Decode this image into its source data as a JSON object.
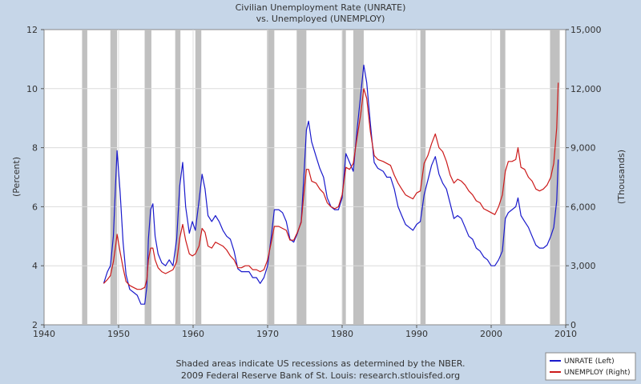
{
  "chart_data": {
    "type": "line",
    "title": "Civilian Unemployment Rate (UNRATE)",
    "subtitle": "vs.  Unemployed (UNEMPLOY)",
    "ylabel_left": "(Percent)",
    "ylabel_right": "(Thousands)",
    "xlim": [
      1940,
      2010
    ],
    "ylim_left": [
      2,
      12
    ],
    "ylim_right": [
      0,
      15000
    ],
    "x_ticks": [
      1940,
      1950,
      1960,
      1970,
      1980,
      1990,
      2000,
      2010
    ],
    "y_left_ticks": [
      2,
      4,
      6,
      8,
      10,
      12
    ],
    "y_right_ticks": [
      0,
      3000,
      6000,
      9000,
      12000,
      15000
    ],
    "y_right_tick_labels": [
      "0",
      "3,000",
      "6,000",
      "9,000",
      "12,000",
      "15,000"
    ],
    "grid": true,
    "legend_position": "bottom-right",
    "recessions": [
      [
        1945.1,
        1945.8
      ],
      [
        1948.9,
        1949.8
      ],
      [
        1953.5,
        1954.4
      ],
      [
        1957.6,
        1958.3
      ],
      [
        1960.3,
        1961.1
      ],
      [
        1969.9,
        1970.9
      ],
      [
        1973.9,
        1975.2
      ],
      [
        1980.0,
        1980.5
      ],
      [
        1981.5,
        1982.9
      ],
      [
        1990.5,
        1991.2
      ],
      [
        2001.2,
        2001.9
      ],
      [
        2007.9,
        2009.2
      ]
    ],
    "series": [
      {
        "name": "UNRATE (Left)",
        "axis": "left",
        "color": "#1a1acc",
        "x": [
          1948.0,
          1948.5,
          1948.9,
          1949.3,
          1949.6,
          1949.8,
          1950.2,
          1950.6,
          1951.0,
          1951.5,
          1952.0,
          1952.5,
          1953.0,
          1953.5,
          1953.8,
          1954.0,
          1954.3,
          1954.6,
          1954.9,
          1955.3,
          1955.8,
          1956.3,
          1956.8,
          1957.3,
          1957.8,
          1958.2,
          1958.6,
          1959.0,
          1959.5,
          1959.9,
          1960.3,
          1960.8,
          1961.2,
          1961.6,
          1962.0,
          1962.5,
          1963.0,
          1963.5,
          1964.0,
          1964.5,
          1965.0,
          1965.5,
          1966.0,
          1966.5,
          1967.0,
          1967.5,
          1968.0,
          1968.5,
          1969.0,
          1969.5,
          1970.0,
          1970.5,
          1970.9,
          1971.5,
          1972.0,
          1972.5,
          1973.0,
          1973.5,
          1974.0,
          1974.5,
          1974.9,
          1975.2,
          1975.5,
          1975.9,
          1976.5,
          1977.0,
          1977.5,
          1978.0,
          1978.5,
          1979.0,
          1979.5,
          1980.0,
          1980.5,
          1981.0,
          1981.5,
          1982.0,
          1982.5,
          1982.9,
          1983.3,
          1983.8,
          1984.3,
          1984.8,
          1985.5,
          1986.0,
          1986.5,
          1987.0,
          1987.5,
          1988.0,
          1988.5,
          1989.0,
          1989.5,
          1990.0,
          1990.5,
          1991.0,
          1991.5,
          1992.0,
          1992.5,
          1993.0,
          1993.5,
          1994.0,
          1994.5,
          1995.0,
          1995.5,
          1996.0,
          1996.5,
          1997.0,
          1997.5,
          1998.0,
          1998.5,
          1999.0,
          1999.5,
          2000.0,
          2000.5,
          2001.0,
          2001.5,
          2001.9,
          2002.3,
          2002.8,
          2003.3,
          2003.6,
          2004.0,
          2004.5,
          2005.0,
          2005.5,
          2006.0,
          2006.5,
          2007.0,
          2007.5,
          2008.0,
          2008.4,
          2008.8,
          2009.0
        ],
        "values": [
          3.4,
          3.8,
          4.0,
          5.0,
          6.8,
          7.9,
          6.5,
          4.8,
          3.7,
          3.2,
          3.1,
          3.0,
          2.7,
          2.7,
          3.3,
          4.9,
          5.9,
          6.1,
          5.0,
          4.4,
          4.1,
          4.0,
          4.2,
          4.0,
          4.9,
          6.7,
          7.5,
          6.0,
          5.1,
          5.5,
          5.2,
          6.2,
          7.1,
          6.6,
          5.7,
          5.5,
          5.7,
          5.5,
          5.2,
          5.0,
          4.9,
          4.5,
          3.9,
          3.8,
          3.8,
          3.8,
          3.6,
          3.6,
          3.4,
          3.6,
          4.0,
          5.0,
          5.9,
          5.9,
          5.8,
          5.5,
          4.9,
          4.8,
          5.1,
          5.5,
          7.2,
          8.6,
          8.9,
          8.2,
          7.7,
          7.3,
          7.0,
          6.3,
          6.0,
          5.9,
          5.9,
          6.3,
          7.8,
          7.5,
          7.2,
          8.6,
          9.8,
          10.8,
          10.2,
          8.8,
          7.5,
          7.3,
          7.2,
          7.0,
          7.0,
          6.6,
          6.0,
          5.7,
          5.4,
          5.3,
          5.2,
          5.4,
          5.5,
          6.4,
          6.9,
          7.4,
          7.7,
          7.1,
          6.8,
          6.6,
          6.1,
          5.6,
          5.7,
          5.6,
          5.3,
          5.0,
          4.9,
          4.6,
          4.5,
          4.3,
          4.2,
          4.0,
          4.0,
          4.2,
          4.5,
          5.6,
          5.8,
          5.9,
          6.0,
          6.3,
          5.7,
          5.5,
          5.3,
          5.0,
          4.7,
          4.6,
          4.6,
          4.7,
          5.0,
          5.3,
          6.2,
          7.6
        ]
      },
      {
        "name": "UNEMPLOY (Right)",
        "axis": "right",
        "color": "#cc1a1a",
        "x": [
          1948.0,
          1948.5,
          1948.9,
          1949.3,
          1949.6,
          1949.8,
          1950.2,
          1950.6,
          1951.0,
          1951.5,
          1952.0,
          1952.5,
          1953.0,
          1953.5,
          1953.8,
          1954.0,
          1954.3,
          1954.6,
          1954.9,
          1955.3,
          1955.8,
          1956.3,
          1956.8,
          1957.3,
          1957.8,
          1958.2,
          1958.6,
          1959.0,
          1959.5,
          1959.9,
          1960.3,
          1960.8,
          1961.2,
          1961.6,
          1962.0,
          1962.5,
          1963.0,
          1963.5,
          1964.0,
          1964.5,
          1965.0,
          1965.5,
          1966.0,
          1966.5,
          1967.0,
          1967.5,
          1968.0,
          1968.5,
          1969.0,
          1969.5,
          1970.0,
          1970.5,
          1970.9,
          1971.5,
          1972.0,
          1972.5,
          1973.0,
          1973.5,
          1974.0,
          1974.5,
          1974.9,
          1975.2,
          1975.5,
          1975.9,
          1976.5,
          1977.0,
          1977.5,
          1978.0,
          1978.5,
          1979.0,
          1979.5,
          1980.0,
          1980.5,
          1981.0,
          1981.5,
          1982.0,
          1982.5,
          1982.9,
          1983.3,
          1983.8,
          1984.3,
          1984.8,
          1985.5,
          1986.0,
          1986.5,
          1987.0,
          1987.5,
          1988.0,
          1988.5,
          1989.0,
          1989.5,
          1990.0,
          1990.5,
          1991.0,
          1991.5,
          1992.0,
          1992.5,
          1993.0,
          1993.5,
          1994.0,
          1994.5,
          1995.0,
          1995.5,
          1996.0,
          1996.5,
          1997.0,
          1997.5,
          1998.0,
          1998.5,
          1999.0,
          1999.5,
          2000.0,
          2000.5,
          2001.0,
          2001.5,
          2001.9,
          2002.3,
          2002.8,
          2003.3,
          2003.6,
          2004.0,
          2004.5,
          2005.0,
          2005.5,
          2006.0,
          2006.5,
          2007.0,
          2007.5,
          2008.0,
          2008.4,
          2008.8,
          2009.0
        ],
        "values": [
          2100,
          2300,
          2500,
          3200,
          4000,
          4600,
          3700,
          2900,
          2200,
          2000,
          1900,
          1800,
          1800,
          1900,
          2300,
          3300,
          3900,
          3900,
          3300,
          2900,
          2700,
          2600,
          2700,
          2800,
          3200,
          4400,
          5100,
          4300,
          3600,
          3500,
          3600,
          4000,
          4900,
          4700,
          4000,
          3900,
          4200,
          4100,
          4000,
          3800,
          3500,
          3300,
          2900,
          2900,
          3000,
          3000,
          2800,
          2800,
          2700,
          2800,
          3300,
          4200,
          5000,
          5000,
          4900,
          4800,
          4300,
          4300,
          4700,
          5200,
          6800,
          7900,
          7900,
          7300,
          7200,
          6900,
          6700,
          6200,
          6000,
          5900,
          6000,
          6600,
          8000,
          7900,
          8200,
          9500,
          10700,
          12000,
          11500,
          9800,
          8600,
          8400,
          8300,
          8200,
          8100,
          7600,
          7200,
          6900,
          6600,
          6500,
          6400,
          6700,
          6800,
          8200,
          8600,
          9200,
          9700,
          9000,
          8800,
          8300,
          7600,
          7200,
          7400,
          7300,
          7100,
          6800,
          6600,
          6300,
          6200,
          5900,
          5800,
          5700,
          5600,
          6000,
          6600,
          7800,
          8300,
          8300,
          8400,
          9000,
          8000,
          7900,
          7500,
          7300,
          6900,
          6800,
          6900,
          7100,
          7500,
          8200,
          10000,
          12300
        ]
      }
    ]
  },
  "footer": {
    "line1": "Shaded areas indicate US recessions as determined by the NBER.",
    "line2": "2009 Federal Reserve Bank of St. Louis: research.stlouisfed.org"
  },
  "colors": {
    "page_background": "#c6d6e8",
    "plot_background": "#ffffff",
    "recession_shade": "#c0c0c0",
    "grid": "#dcdcdc"
  }
}
